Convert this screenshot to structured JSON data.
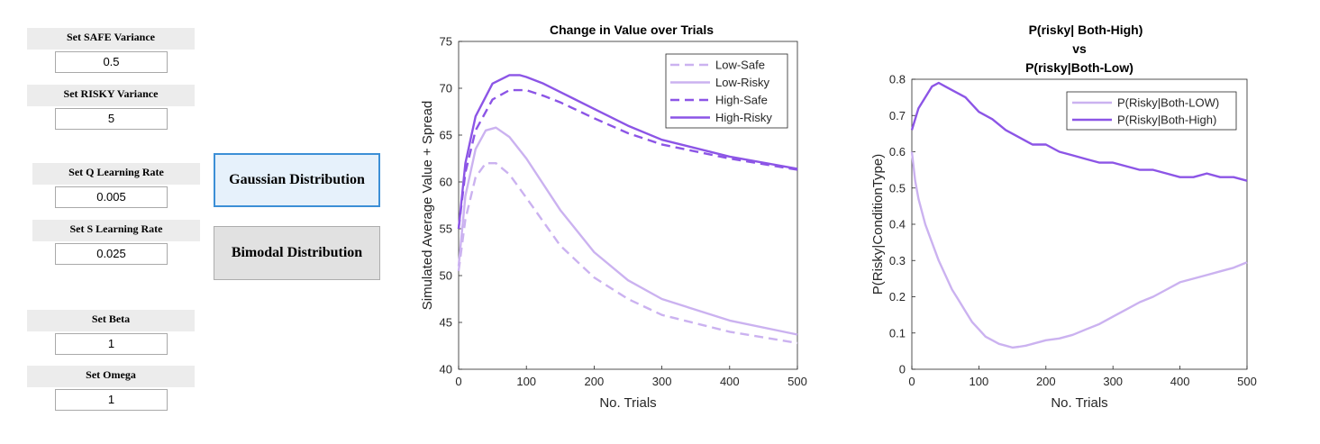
{
  "params": {
    "safe_variance": {
      "label": "Set SAFE Variance",
      "value": "0.5"
    },
    "risky_variance": {
      "label": "Set RISKY Variance",
      "value": "5"
    },
    "q_rate": {
      "label": "Set Q Learning Rate",
      "value": "0.005"
    },
    "s_rate": {
      "label": "Set S Learning Rate",
      "value": "0.025"
    },
    "beta": {
      "label": "Set Beta",
      "value": "1"
    },
    "omega": {
      "label": "Set Omega",
      "value": "1"
    }
  },
  "buttons": {
    "gaussian": "Gaussian Distribution",
    "bimodal": "Bimodal Distribution"
  },
  "colors": {
    "light": "#cbb2f0",
    "dark": "#8c55e6",
    "pressed_border": "#3c8fd6"
  },
  "chart_data": [
    {
      "type": "line",
      "title": "Change in Value over Trials",
      "xlabel": "No. Trials",
      "ylabel": "Simulated Average Value + Spread",
      "xlim": [
        0,
        500
      ],
      "ylim": [
        40,
        75
      ],
      "xticks": [
        "0",
        "100",
        "200",
        "300",
        "400",
        "500"
      ],
      "yticks": [
        "40",
        "45",
        "50",
        "55",
        "60",
        "65",
        "70",
        "75"
      ],
      "legend_position": "top-right",
      "series": [
        {
          "name": "Low-Safe",
          "color": "light",
          "style": "dashed",
          "x": [
            0,
            10,
            25,
            40,
            55,
            75,
            100,
            150,
            200,
            250,
            300,
            400,
            500
          ],
          "y": [
            50.5,
            56,
            60.5,
            62,
            62,
            60.8,
            58.3,
            53.2,
            49.8,
            47.5,
            45.8,
            44,
            42.8
          ]
        },
        {
          "name": "Low-Risky",
          "color": "light",
          "style": "solid",
          "x": [
            0,
            10,
            25,
            40,
            55,
            75,
            100,
            150,
            200,
            250,
            300,
            400,
            500
          ],
          "y": [
            51,
            58.5,
            63.5,
            65.5,
            65.8,
            64.8,
            62.5,
            57,
            52.5,
            49.5,
            47.5,
            45.2,
            43.7
          ]
        },
        {
          "name": "High-Safe",
          "color": "dark",
          "style": "dashed",
          "x": [
            0,
            10,
            25,
            50,
            75,
            100,
            125,
            150,
            200,
            250,
            300,
            400,
            500
          ],
          "y": [
            55,
            61,
            65.5,
            68.8,
            69.8,
            69.8,
            69.2,
            68.5,
            66.8,
            65.2,
            64,
            62.5,
            61.3
          ]
        },
        {
          "name": "High-Risky",
          "color": "dark",
          "style": "solid",
          "x": [
            0,
            10,
            25,
            50,
            75,
            90,
            100,
            125,
            150,
            200,
            250,
            300,
            400,
            500
          ],
          "y": [
            55,
            62,
            67,
            70.5,
            71.4,
            71.4,
            71.2,
            70.5,
            69.6,
            67.8,
            66,
            64.5,
            62.7,
            61.4
          ]
        }
      ]
    },
    {
      "type": "line",
      "title": [
        "P(risky| Both-High)",
        "vs",
        "P(risky|Both-Low)"
      ],
      "xlabel": "No. Trials",
      "ylabel": "P(Risky|ConditionType)",
      "xlim": [
        0,
        500
      ],
      "ylim": [
        0,
        0.8
      ],
      "xticks": [
        "0",
        "100",
        "200",
        "300",
        "400",
        "500"
      ],
      "yticks": [
        "0",
        "0.1",
        "0.2",
        "0.3",
        "0.4",
        "0.5",
        "0.6",
        "0.7",
        "0.8"
      ],
      "legend_position": "top-right",
      "series": [
        {
          "name": "P(Risky|Both-LOW)",
          "color": "light",
          "style": "solid",
          "x": [
            0,
            5,
            10,
            20,
            30,
            40,
            50,
            60,
            70,
            80,
            90,
            100,
            110,
            120,
            130,
            140,
            150,
            160,
            170,
            180,
            190,
            200,
            220,
            240,
            260,
            280,
            300,
            320,
            340,
            360,
            380,
            400,
            420,
            440,
            460,
            480,
            500
          ],
          "y": [
            0.6,
            0.52,
            0.47,
            0.4,
            0.35,
            0.3,
            0.26,
            0.22,
            0.19,
            0.16,
            0.13,
            0.11,
            0.09,
            0.08,
            0.07,
            0.065,
            0.06,
            0.062,
            0.065,
            0.07,
            0.075,
            0.08,
            0.085,
            0.095,
            0.11,
            0.125,
            0.145,
            0.165,
            0.185,
            0.2,
            0.22,
            0.24,
            0.25,
            0.26,
            0.27,
            0.28,
            0.295
          ]
        },
        {
          "name": "P(Risky|Both-High)",
          "color": "dark",
          "style": "solid",
          "x": [
            0,
            5,
            10,
            20,
            30,
            40,
            50,
            60,
            70,
            80,
            90,
            100,
            120,
            140,
            160,
            180,
            200,
            220,
            240,
            260,
            280,
            300,
            320,
            340,
            360,
            380,
            400,
            420,
            440,
            460,
            480,
            500
          ],
          "y": [
            0.66,
            0.69,
            0.72,
            0.75,
            0.78,
            0.79,
            0.78,
            0.77,
            0.76,
            0.75,
            0.73,
            0.71,
            0.69,
            0.66,
            0.64,
            0.62,
            0.62,
            0.6,
            0.59,
            0.58,
            0.57,
            0.57,
            0.56,
            0.55,
            0.55,
            0.54,
            0.53,
            0.53,
            0.54,
            0.53,
            0.53,
            0.52
          ]
        }
      ]
    }
  ]
}
